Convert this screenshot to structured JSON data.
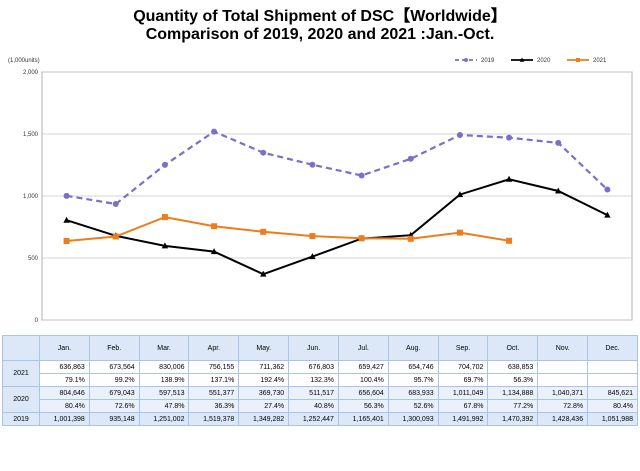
{
  "title_line1": "Quantity of Total Shipment of DSC【Worldwide】",
  "title_line2": "Comparison of 2019, 2020 and 2021 :Jan.-Oct.",
  "chart_data": {
    "type": "line",
    "title": "Quantity of Total Shipment of DSC【Worldwide】 Comparison of 2019, 2020 and 2021 :Jan.-Oct.",
    "unit_label": "(1,000units)",
    "categories": [
      "Jan.",
      "Feb.",
      "Mar.",
      "Apr.",
      "May.",
      "Jun.",
      "Jul.",
      "Aug.",
      "Sep.",
      "Oct.",
      "Nov.",
      "Dec."
    ],
    "ylim": [
      0,
      2000
    ],
    "y_ticks": [
      "0",
      "500",
      "1,000",
      "1,500",
      "2,000"
    ],
    "y_tick_values": [
      0,
      500,
      1000,
      1500,
      2000
    ],
    "grid": true,
    "legend_position": "top-right",
    "series": [
      {
        "name": "2019",
        "color": "#7b6fc6",
        "style": "dashed",
        "marker": "circle",
        "values": [
          1001.398,
          935.148,
          1251.002,
          1519.378,
          1349.282,
          1252.447,
          1165.401,
          1300.093,
          1491.992,
          1470.392,
          1428.436,
          1051.988
        ]
      },
      {
        "name": "2020",
        "color": "#000000",
        "style": "solid",
        "marker": "triangle",
        "values": [
          804.646,
          679.043,
          597.513,
          551.377,
          369.73,
          511.517,
          656.604,
          683.933,
          1011.049,
          1134.888,
          1040.371,
          845.621
        ]
      },
      {
        "name": "2021",
        "color": "#ed7d1a",
        "style": "solid",
        "marker": "square",
        "values": [
          636.863,
          673.564,
          830.006,
          756.155,
          711.362,
          676.803,
          659.427,
          654.746,
          704.702,
          638.853,
          null,
          null
        ]
      }
    ]
  },
  "table": {
    "months": [
      "Jan.",
      "Feb.",
      "Mar.",
      "Apr.",
      "May.",
      "Jun.",
      "Jul.",
      "Aug.",
      "Sep.",
      "Oct.",
      "Nov.",
      "Dec."
    ],
    "rows": [
      {
        "year": "2021",
        "values": [
          "636,863",
          "673,564",
          "830,006",
          "756,155",
          "711,362",
          "676,803",
          "659,427",
          "654,746",
          "704,702",
          "638,853",
          "",
          ""
        ],
        "pct": [
          "79.1%",
          "99.2%",
          "138.9%",
          "137.1%",
          "192.4%",
          "132.3%",
          "100.4%",
          "95.7%",
          "69.7%",
          "56.3%",
          "",
          ""
        ]
      },
      {
        "year": "2020",
        "values": [
          "804,646",
          "679,043",
          "597,513",
          "551,377",
          "369,730",
          "511,517",
          "656,604",
          "683,933",
          "1,011,049",
          "1,134,888",
          "1,040,371",
          "845,621"
        ],
        "pct": [
          "80.4%",
          "72.6%",
          "47.8%",
          "36.3%",
          "27.4%",
          "40.8%",
          "56.3%",
          "52.6%",
          "67.8%",
          "77.2%",
          "72.8%",
          "80.4%"
        ]
      },
      {
        "year": "2019",
        "values": [
          "1,001,398",
          "935,148",
          "1,251,002",
          "1,519,378",
          "1,349,282",
          "1,252,447",
          "1,165,401",
          "1,300,093",
          "1,491,992",
          "1,470,392",
          "1,428,436",
          "1,051,988"
        ]
      }
    ]
  }
}
